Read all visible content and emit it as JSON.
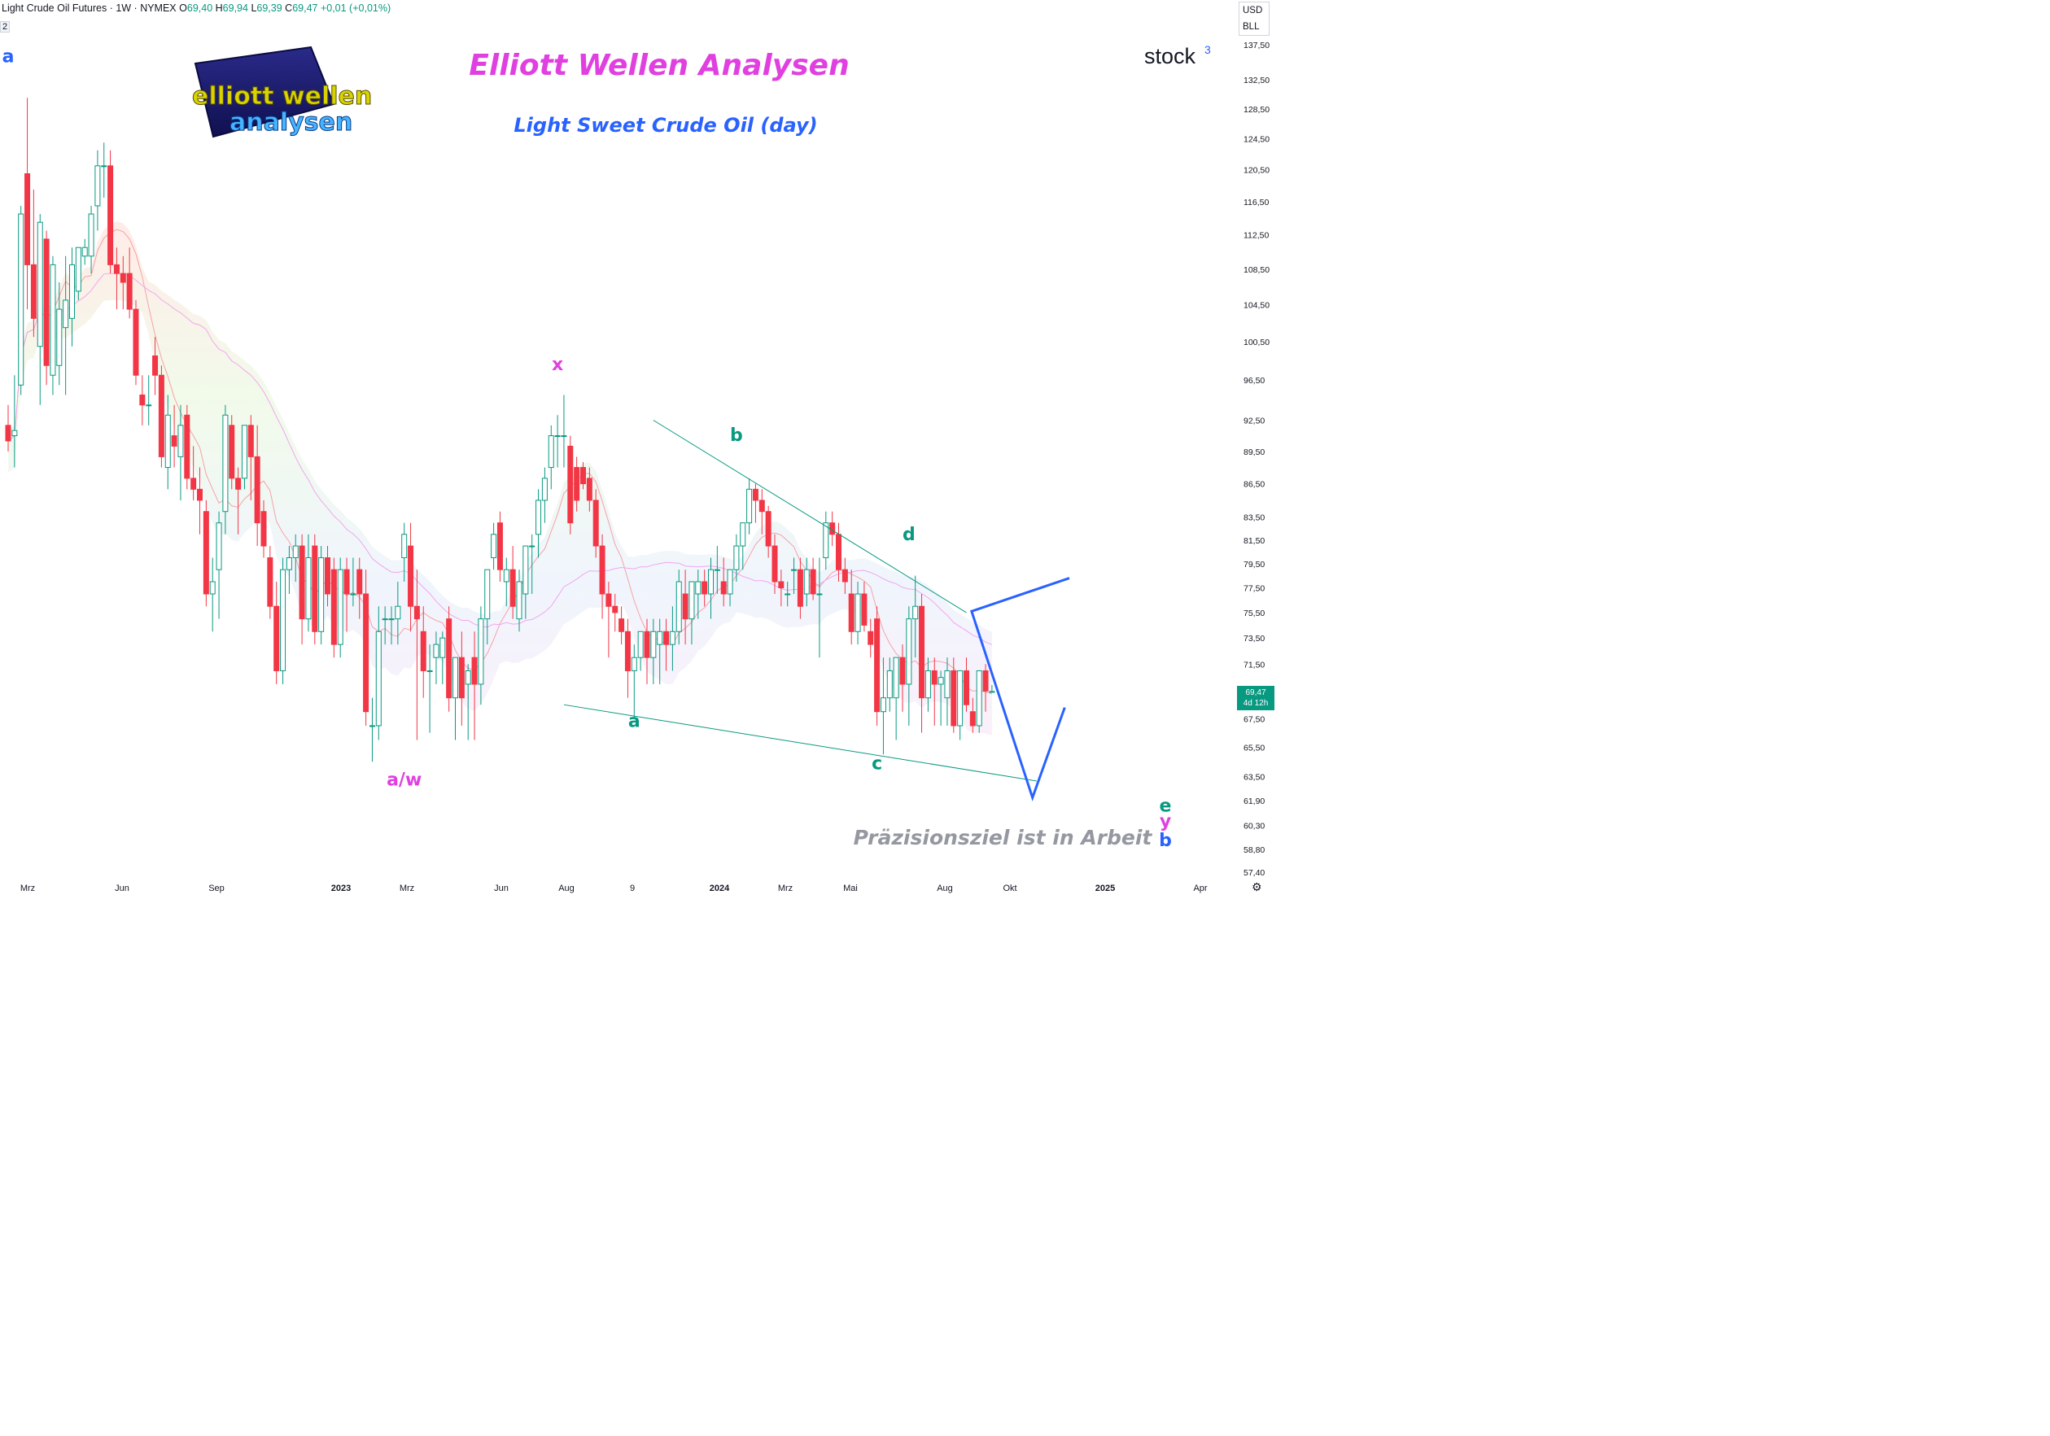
{
  "header": {
    "symbol": "Light Crude Oil Futures · 1W · NYMEX",
    "open_label": "O",
    "open": "69,40",
    "high_label": "H",
    "high": "69,94",
    "low_label": "L",
    "low": "69,39",
    "close_label": "C",
    "close": "69,47",
    "change": "+0,01 (+0,01%)",
    "indicator_count": "2"
  },
  "scale_box": {
    "currency": "USD",
    "unit": "BLL"
  },
  "price_tag": {
    "price": "69,47",
    "countdown": "4d 12h",
    "color": "#089981"
  },
  "titles": {
    "main": "Elliott Wellen Analysen",
    "sub": "Light Sweet Crude Oil (day)",
    "brand": "stock",
    "brand_sup": "3",
    "logo_line1": "elliott wellen",
    "logo_line2": "analysen",
    "note": "Präzisionsziel ist in Arbeit"
  },
  "colors": {
    "up": "#089981",
    "down": "#f23645",
    "magenta": "#e040e0",
    "blue": "#2962ff",
    "teal": "#089981",
    "note": "#9598a1"
  },
  "chart_data": {
    "type": "candlestick",
    "y_axis_labels": [
      "137,50",
      "132,50",
      "128,50",
      "124,50",
      "120,50",
      "116,50",
      "112,50",
      "108,50",
      "104,50",
      "100,50",
      "96,50",
      "92,50",
      "89,50",
      "86,50",
      "83,50",
      "81,50",
      "79,50",
      "77,50",
      "75,50",
      "73,50",
      "71,50",
      "67,50",
      "65,50",
      "63,50",
      "61,90",
      "60,30",
      "58,80",
      "57,40"
    ],
    "x_axis_labels": [
      "Mrz",
      "Jun",
      "Sep",
      "2023",
      "Mrz",
      "Jun",
      "Aug",
      "9",
      "2024",
      "Mrz",
      "Mai",
      "Aug",
      "Okt",
      "2025",
      "Apr"
    ],
    "candles": [
      {
        "o": 92,
        "h": 94,
        "l": 89.5,
        "c": 90.5
      },
      {
        "o": 91,
        "h": 97,
        "l": 88,
        "c": 91.5
      },
      {
        "o": 96,
        "h": 116,
        "l": 95,
        "c": 115
      },
      {
        "o": 120,
        "h": 130,
        "l": 104,
        "c": 109
      },
      {
        "o": 109,
        "h": 118,
        "l": 101,
        "c": 103
      },
      {
        "o": 100,
        "h": 115,
        "l": 94,
        "c": 114
      },
      {
        "o": 112,
        "h": 113,
        "l": 96,
        "c": 98
      },
      {
        "o": 97,
        "h": 110,
        "l": 95,
        "c": 109
      },
      {
        "o": 98,
        "h": 107,
        "l": 96,
        "c": 104
      },
      {
        "o": 102,
        "h": 110,
        "l": 95,
        "c": 105
      },
      {
        "o": 103,
        "h": 111,
        "l": 100,
        "c": 109
      },
      {
        "o": 106,
        "h": 111,
        "l": 105,
        "c": 111
      },
      {
        "o": 110,
        "h": 112,
        "l": 109,
        "c": 111
      },
      {
        "o": 110,
        "h": 116,
        "l": 108,
        "c": 115
      },
      {
        "o": 116,
        "h": 123,
        "l": 113,
        "c": 121
      },
      {
        "o": 121,
        "h": 124,
        "l": 117,
        "c": 121
      },
      {
        "o": 121,
        "h": 123,
        "l": 108,
        "c": 109
      },
      {
        "o": 109,
        "h": 111,
        "l": 104,
        "c": 108
      },
      {
        "o": 108,
        "h": 110,
        "l": 104,
        "c": 107
      },
      {
        "o": 108,
        "h": 111,
        "l": 103,
        "c": 104
      },
      {
        "o": 104,
        "h": 105,
        "l": 96,
        "c": 97
      },
      {
        "o": 95,
        "h": 97,
        "l": 92,
        "c": 94
      },
      {
        "o": 94,
        "h": 97,
        "l": 92,
        "c": 94
      },
      {
        "o": 99,
        "h": 101,
        "l": 95,
        "c": 97
      },
      {
        "o": 97,
        "h": 98,
        "l": 88,
        "c": 89
      },
      {
        "o": 88,
        "h": 95,
        "l": 86,
        "c": 93
      },
      {
        "o": 91,
        "h": 94,
        "l": 88,
        "c": 90
      },
      {
        "o": 89,
        "h": 94,
        "l": 85,
        "c": 92
      },
      {
        "o": 93,
        "h": 94,
        "l": 86,
        "c": 87
      },
      {
        "o": 87,
        "h": 90,
        "l": 85,
        "c": 86
      },
      {
        "o": 86,
        "h": 88,
        "l": 82,
        "c": 85
      },
      {
        "o": 84,
        "h": 85,
        "l": 76,
        "c": 77
      },
      {
        "o": 77,
        "h": 80,
        "l": 74,
        "c": 78
      },
      {
        "o": 79,
        "h": 84,
        "l": 75,
        "c": 83
      },
      {
        "o": 84,
        "h": 94,
        "l": 82,
        "c": 93
      },
      {
        "o": 92,
        "h": 93,
        "l": 86,
        "c": 87
      },
      {
        "o": 87,
        "h": 88,
        "l": 82,
        "c": 86
      },
      {
        "o": 87,
        "h": 92,
        "l": 86,
        "c": 92
      },
      {
        "o": 92,
        "h": 93,
        "l": 85,
        "c": 89
      },
      {
        "o": 89,
        "h": 92,
        "l": 81,
        "c": 83
      },
      {
        "o": 84,
        "h": 85,
        "l": 80,
        "c": 81
      },
      {
        "o": 80,
        "h": 81,
        "l": 75,
        "c": 76
      },
      {
        "o": 76,
        "h": 78,
        "l": 70,
        "c": 71
      },
      {
        "o": 71,
        "h": 80,
        "l": 70,
        "c": 79
      },
      {
        "o": 79,
        "h": 81,
        "l": 77,
        "c": 80
      },
      {
        "o": 80,
        "h": 82,
        "l": 78,
        "c": 81
      },
      {
        "o": 81,
        "h": 82,
        "l": 73,
        "c": 75
      },
      {
        "o": 75,
        "h": 82,
        "l": 74,
        "c": 80
      },
      {
        "o": 81,
        "h": 82,
        "l": 73,
        "c": 74
      },
      {
        "o": 74,
        "h": 81,
        "l": 73,
        "c": 80
      },
      {
        "o": 80,
        "h": 81,
        "l": 76,
        "c": 77
      },
      {
        "o": 79,
        "h": 80,
        "l": 72,
        "c": 73
      },
      {
        "o": 73,
        "h": 80,
        "l": 72,
        "c": 79
      },
      {
        "o": 79,
        "h": 80,
        "l": 74,
        "c": 77
      },
      {
        "o": 77,
        "h": 80,
        "l": 76,
        "c": 77
      },
      {
        "o": 79,
        "h": 80,
        "l": 75,
        "c": 77
      },
      {
        "o": 77,
        "h": 79,
        "l": 67,
        "c": 68
      },
      {
        "o": 67,
        "h": 69,
        "l": 64.5,
        "c": 67
      },
      {
        "o": 67,
        "h": 76,
        "l": 66,
        "c": 74
      },
      {
        "o": 75,
        "h": 76,
        "l": 73,
        "c": 75
      },
      {
        "o": 75,
        "h": 76,
        "l": 73,
        "c": 75
      },
      {
        "o": 75,
        "h": 78,
        "l": 73,
        "c": 76
      },
      {
        "o": 80,
        "h": 83,
        "l": 78,
        "c": 82
      },
      {
        "o": 81,
        "h": 83,
        "l": 74,
        "c": 76
      },
      {
        "o": 76,
        "h": 79,
        "l": 66,
        "c": 75
      },
      {
        "o": 74,
        "h": 76,
        "l": 69,
        "c": 71
      },
      {
        "o": 71,
        "h": 73,
        "l": 66.5,
        "c": 71
      },
      {
        "o": 72,
        "h": 74,
        "l": 70,
        "c": 73
      },
      {
        "o": 72,
        "h": 74,
        "l": 70,
        "c": 73.5
      },
      {
        "o": 75,
        "h": 76,
        "l": 68,
        "c": 69
      },
      {
        "o": 69,
        "h": 72,
        "l": 66,
        "c": 72
      },
      {
        "o": 72,
        "h": 74,
        "l": 67,
        "c": 69
      },
      {
        "o": 70,
        "h": 71.5,
        "l": 66,
        "c": 71
      },
      {
        "o": 72,
        "h": 74,
        "l": 66,
        "c": 70
      },
      {
        "o": 70,
        "h": 76,
        "l": 68.5,
        "c": 75
      },
      {
        "o": 75,
        "h": 79,
        "l": 73,
        "c": 79
      },
      {
        "o": 80,
        "h": 83,
        "l": 79,
        "c": 82
      },
      {
        "o": 83,
        "h": 84,
        "l": 78,
        "c": 79
      },
      {
        "o": 78,
        "h": 80,
        "l": 76,
        "c": 79
      },
      {
        "o": 79,
        "h": 81,
        "l": 75,
        "c": 76
      },
      {
        "o": 75,
        "h": 79,
        "l": 74,
        "c": 78
      },
      {
        "o": 77,
        "h": 81,
        "l": 75,
        "c": 81
      },
      {
        "o": 81,
        "h": 82,
        "l": 77,
        "c": 81
      },
      {
        "o": 82,
        "h": 86,
        "l": 80,
        "c": 85
      },
      {
        "o": 85,
        "h": 88,
        "l": 83,
        "c": 87
      },
      {
        "o": 88,
        "h": 92,
        "l": 86,
        "c": 91
      },
      {
        "o": 91,
        "h": 93,
        "l": 88,
        "c": 91
      },
      {
        "o": 91,
        "h": 95,
        "l": 88,
        "c": 91
      },
      {
        "o": 90,
        "h": 91,
        "l": 82,
        "c": 83
      },
      {
        "o": 88,
        "h": 89,
        "l": 84,
        "c": 85
      },
      {
        "o": 88,
        "h": 88.5,
        "l": 86,
        "c": 86.5
      },
      {
        "o": 87,
        "h": 88,
        "l": 84,
        "c": 85
      },
      {
        "o": 85,
        "h": 86,
        "l": 80,
        "c": 81
      },
      {
        "o": 81,
        "h": 82,
        "l": 75,
        "c": 77
      },
      {
        "o": 77,
        "h": 78,
        "l": 72,
        "c": 76
      },
      {
        "o": 76,
        "h": 77,
        "l": 74,
        "c": 75.5
      },
      {
        "o": 75,
        "h": 76,
        "l": 73,
        "c": 74
      },
      {
        "o": 74,
        "h": 75,
        "l": 69,
        "c": 71
      },
      {
        "o": 71,
        "h": 73,
        "l": 67.5,
        "c": 72
      },
      {
        "o": 72,
        "h": 74,
        "l": 71,
        "c": 74
      },
      {
        "o": 74,
        "h": 75,
        "l": 70,
        "c": 72
      },
      {
        "o": 72,
        "h": 75,
        "l": 70,
        "c": 74
      },
      {
        "o": 73,
        "h": 75,
        "l": 70,
        "c": 74
      },
      {
        "o": 74,
        "h": 75,
        "l": 71,
        "c": 73
      },
      {
        "o": 73,
        "h": 76,
        "l": 71,
        "c": 74
      },
      {
        "o": 74,
        "h": 79,
        "l": 73,
        "c": 78
      },
      {
        "o": 77,
        "h": 79,
        "l": 73,
        "c": 75
      },
      {
        "o": 75,
        "h": 78,
        "l": 73,
        "c": 78
      },
      {
        "o": 77,
        "h": 79,
        "l": 75,
        "c": 78
      },
      {
        "o": 78,
        "h": 79,
        "l": 76,
        "c": 77
      },
      {
        "o": 77,
        "h": 80,
        "l": 75,
        "c": 79
      },
      {
        "o": 79,
        "h": 81,
        "l": 77,
        "c": 79
      },
      {
        "o": 78,
        "h": 80,
        "l": 76,
        "c": 77
      },
      {
        "o": 77,
        "h": 79,
        "l": 76,
        "c": 79
      },
      {
        "o": 79,
        "h": 82,
        "l": 78,
        "c": 81
      },
      {
        "o": 81,
        "h": 83,
        "l": 79,
        "c": 83
      },
      {
        "o": 83,
        "h": 87,
        "l": 82,
        "c": 86
      },
      {
        "o": 86,
        "h": 86.5,
        "l": 83,
        "c": 85
      },
      {
        "o": 85,
        "h": 86,
        "l": 82,
        "c": 84
      },
      {
        "o": 84,
        "h": 84.5,
        "l": 80,
        "c": 81
      },
      {
        "o": 81,
        "h": 82,
        "l": 77,
        "c": 78
      },
      {
        "o": 78,
        "h": 79,
        "l": 76,
        "c": 77.5
      },
      {
        "o": 77,
        "h": 78,
        "l": 76,
        "c": 77
      },
      {
        "o": 79,
        "h": 80,
        "l": 77,
        "c": 79
      },
      {
        "o": 79,
        "h": 80,
        "l": 75,
        "c": 76
      },
      {
        "o": 77,
        "h": 80,
        "l": 76,
        "c": 79
      },
      {
        "o": 79,
        "h": 80,
        "l": 76.5,
        "c": 77
      },
      {
        "o": 77,
        "h": 80,
        "l": 72,
        "c": 77
      },
      {
        "o": 80,
        "h": 84,
        "l": 79,
        "c": 83
      },
      {
        "o": 83,
        "h": 84,
        "l": 81,
        "c": 82
      },
      {
        "o": 82,
        "h": 83,
        "l": 78,
        "c": 79
      },
      {
        "o": 79,
        "h": 80,
        "l": 77,
        "c": 78
      },
      {
        "o": 77,
        "h": 79,
        "l": 73,
        "c": 74
      },
      {
        "o": 74,
        "h": 78,
        "l": 73,
        "c": 77
      },
      {
        "o": 77,
        "h": 78,
        "l": 74,
        "c": 74.5
      },
      {
        "o": 74,
        "h": 75,
        "l": 72,
        "c": 73
      },
      {
        "o": 75,
        "h": 76,
        "l": 67,
        "c": 68
      },
      {
        "o": 68,
        "h": 72,
        "l": 65,
        "c": 69
      },
      {
        "o": 69,
        "h": 72,
        "l": 68,
        "c": 71
      },
      {
        "o": 69,
        "h": 72,
        "l": 66,
        "c": 72
      },
      {
        "o": 72,
        "h": 73,
        "l": 68,
        "c": 70
      },
      {
        "o": 70,
        "h": 76,
        "l": 67,
        "c": 75
      },
      {
        "o": 75,
        "h": 78.5,
        "l": 72,
        "c": 76
      },
      {
        "o": 76,
        "h": 77,
        "l": 66.5,
        "c": 69
      },
      {
        "o": 69,
        "h": 72,
        "l": 68,
        "c": 71
      },
      {
        "o": 71,
        "h": 72,
        "l": 67,
        "c": 70
      },
      {
        "o": 70,
        "h": 71,
        "l": 67,
        "c": 70.5
      },
      {
        "o": 69,
        "h": 72,
        "l": 67,
        "c": 71
      },
      {
        "o": 71,
        "h": 72,
        "l": 66.5,
        "c": 67
      },
      {
        "o": 67,
        "h": 71,
        "l": 66,
        "c": 71
      },
      {
        "o": 71,
        "h": 72,
        "l": 68,
        "c": 68.5
      },
      {
        "o": 68,
        "h": 69,
        "l": 66.5,
        "c": 67
      },
      {
        "o": 67,
        "h": 71,
        "l": 66.5,
        "c": 71
      },
      {
        "o": 71,
        "h": 71.5,
        "l": 68,
        "c": 69.5
      },
      {
        "o": 69.4,
        "h": 69.94,
        "l": 69.39,
        "c": 69.47
      }
    ],
    "wave_labels": [
      {
        "text": "a",
        "color": "blue",
        "candle": 0,
        "price": 135.0
      },
      {
        "text": "x",
        "color": "magenta",
        "candle": 86,
        "price": 97.5
      },
      {
        "text": "a/w",
        "color": "magenta",
        "candle": 62,
        "price": 62.9
      },
      {
        "text": "a",
        "color": "teal",
        "candle": 98,
        "price": 66.9
      },
      {
        "text": "b",
        "color": "teal",
        "candle": 114,
        "price": 90.5
      },
      {
        "text": "c",
        "color": "teal",
        "candle": 136,
        "price": 64.0
      },
      {
        "text": "d",
        "color": "teal",
        "candle": 141,
        "price": 81.5
      },
      {
        "text": "e",
        "color": "teal",
        "candle": "future",
        "price": 61.2
      },
      {
        "text": "y",
        "color": "magenta",
        "candle": "future",
        "price": 60.2
      },
      {
        "text": "b",
        "color": "blue",
        "candle": "future",
        "price": 59.0
      }
    ],
    "projection_points": [
      [
        75.6,
        0
      ],
      [
        62.1,
        8.5
      ],
      [
        68.3,
        13
      ]
    ],
    "trend_lines": [
      {
        "from": {
          "candle": 101,
          "price": 92.5
        },
        "to": {
          "candle": 150,
          "price": 75.5
        }
      },
      {
        "from": {
          "candle": 87,
          "price": 68.5
        },
        "to": {
          "candle": 161,
          "price": 63.2
        }
      }
    ]
  }
}
